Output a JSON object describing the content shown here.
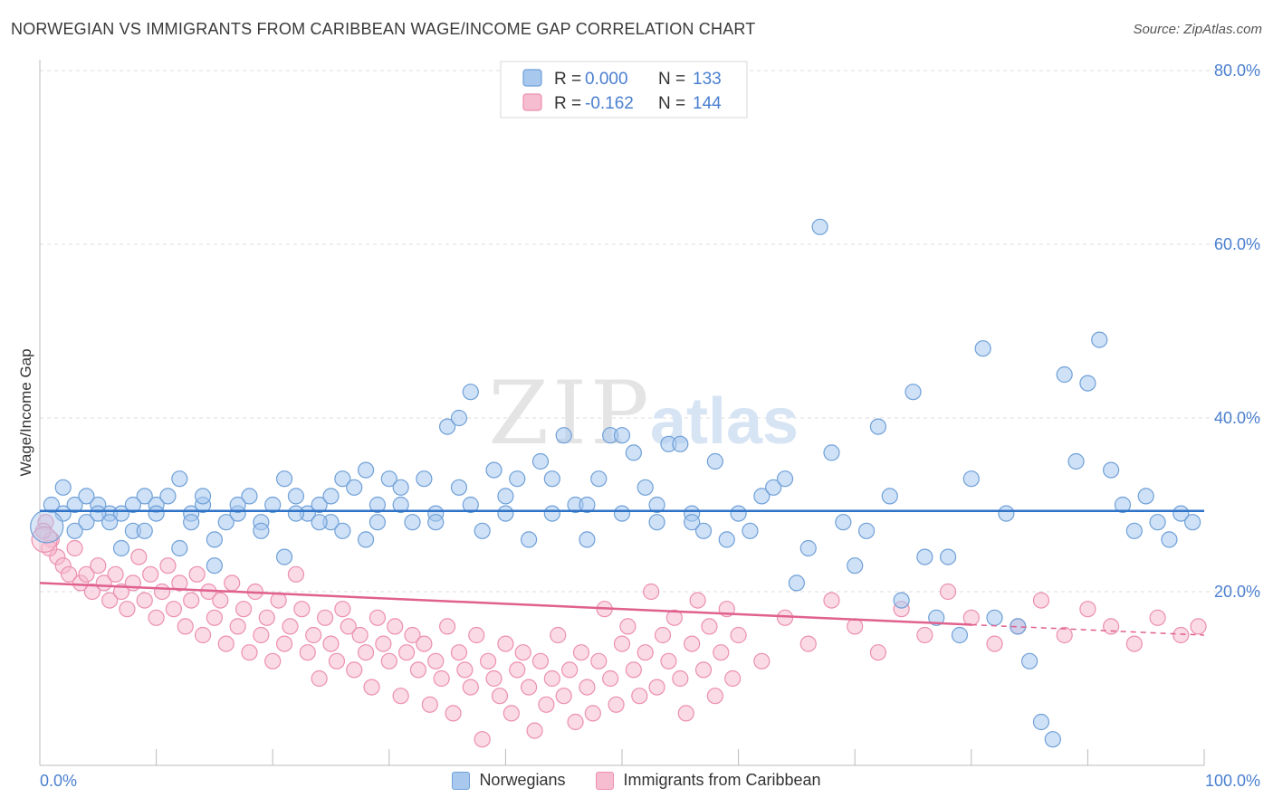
{
  "header": {
    "title": "NORWEGIAN VS IMMIGRANTS FROM CARIBBEAN WAGE/INCOME GAP CORRELATION CHART",
    "source": "Source: ZipAtlas.com"
  },
  "colors": {
    "blue_fill": "#a8c8ee",
    "blue_stroke": "#6fa0d8",
    "blue_line": "#2f73c8",
    "pink_fill": "#f6bcd0",
    "pink_stroke": "#ec8fb0",
    "pink_line": "#e0608e",
    "axis_text": "#4a7fd0",
    "grid": "#dddddd"
  },
  "chart_data": {
    "type": "scatter",
    "title": "NORWEGIAN VS IMMIGRANTS FROM CARIBBEAN WAGE/INCOME GAP CORRELATION CHART",
    "xlabel": "",
    "ylabel": "Wage/Income Gap",
    "xlim": [
      0,
      100
    ],
    "ylim": [
      0,
      80
    ],
    "x_tick_labels": [
      "0.0%",
      "100.0%"
    ],
    "y_ticks": [
      20,
      40,
      60,
      80
    ],
    "y_tick_labels": [
      "20.0%",
      "40.0%",
      "60.0%",
      "80.0%"
    ],
    "watermark": {
      "main": "ZIP",
      "sub": "atlas"
    },
    "legend_top": [
      {
        "r_label": "R =",
        "r": "0.000",
        "n_label": "N =",
        "n": "133"
      },
      {
        "r_label": "R =",
        "r": "-0.162",
        "n_label": "N =",
        "n": "144"
      }
    ],
    "series": [
      {
        "name": "Norwegians",
        "color": "#a8c8ee",
        "trend": {
          "x": [
            0,
            100
          ],
          "y": [
            29.3,
            29.3
          ],
          "dashed_from": null
        },
        "points": [
          [
            2,
            32
          ],
          [
            3,
            30
          ],
          [
            4,
            28
          ],
          [
            5,
            30
          ],
          [
            6,
            29
          ],
          [
            7,
            29
          ],
          [
            7,
            25
          ],
          [
            8,
            27
          ],
          [
            9,
            27
          ],
          [
            9,
            31
          ],
          [
            10,
            30
          ],
          [
            11,
            31
          ],
          [
            12,
            33
          ],
          [
            12,
            25
          ],
          [
            13,
            29
          ],
          [
            14,
            30
          ],
          [
            15,
            26
          ],
          [
            15,
            23
          ],
          [
            16,
            28
          ],
          [
            17,
            29
          ],
          [
            18,
            31
          ],
          [
            19,
            28
          ],
          [
            20,
            30
          ],
          [
            21,
            33
          ],
          [
            21,
            24
          ],
          [
            22,
            31
          ],
          [
            23,
            29
          ],
          [
            24,
            30
          ],
          [
            25,
            28
          ],
          [
            25,
            31
          ],
          [
            26,
            33
          ],
          [
            27,
            32
          ],
          [
            28,
            34
          ],
          [
            28,
            26
          ],
          [
            29,
            28
          ],
          [
            30,
            33
          ],
          [
            31,
            32
          ],
          [
            32,
            28
          ],
          [
            33,
            33
          ],
          [
            34,
            29
          ],
          [
            35,
            39
          ],
          [
            36,
            40
          ],
          [
            36,
            32
          ],
          [
            37,
            43
          ],
          [
            38,
            27
          ],
          [
            39,
            34
          ],
          [
            40,
            31
          ],
          [
            41,
            33
          ],
          [
            42,
            26
          ],
          [
            43,
            35
          ],
          [
            44,
            33
          ],
          [
            45,
            38
          ],
          [
            46,
            30
          ],
          [
            47,
            26
          ],
          [
            48,
            33
          ],
          [
            49,
            38
          ],
          [
            50,
            38
          ],
          [
            51,
            36
          ],
          [
            52,
            32
          ],
          [
            53,
            28
          ],
          [
            54,
            37
          ],
          [
            55,
            37
          ],
          [
            56,
            29
          ],
          [
            57,
            27
          ],
          [
            58,
            35
          ],
          [
            59,
            26
          ],
          [
            60,
            29
          ],
          [
            61,
            27
          ],
          [
            62,
            31
          ],
          [
            63,
            32
          ],
          [
            64,
            33
          ],
          [
            65,
            21
          ],
          [
            66,
            25
          ],
          [
            67,
            62
          ],
          [
            68,
            36
          ],
          [
            69,
            28
          ],
          [
            70,
            23
          ],
          [
            71,
            27
          ],
          [
            72,
            39
          ],
          [
            73,
            31
          ],
          [
            74,
            19
          ],
          [
            75,
            43
          ],
          [
            76,
            24
          ],
          [
            77,
            17
          ],
          [
            78,
            24
          ],
          [
            79,
            15
          ],
          [
            80,
            33
          ],
          [
            81,
            48
          ],
          [
            82,
            17
          ],
          [
            83,
            29
          ],
          [
            84,
            16
          ],
          [
            85,
            12
          ],
          [
            86,
            5
          ],
          [
            87,
            3
          ],
          [
            88,
            45
          ],
          [
            89,
            35
          ],
          [
            90,
            44
          ],
          [
            91,
            49
          ],
          [
            92,
            34
          ],
          [
            93,
            30
          ],
          [
            94,
            27
          ],
          [
            95,
            31
          ],
          [
            96,
            28
          ],
          [
            97,
            26
          ],
          [
            98,
            29
          ],
          [
            99,
            28
          ],
          [
            1,
            30
          ],
          [
            2,
            29
          ],
          [
            3,
            27
          ],
          [
            4,
            31
          ],
          [
            5,
            29
          ],
          [
            6,
            28
          ],
          [
            8,
            30
          ],
          [
            10,
            29
          ],
          [
            13,
            28
          ],
          [
            14,
            31
          ],
          [
            17,
            30
          ],
          [
            19,
            27
          ],
          [
            22,
            29
          ],
          [
            24,
            28
          ],
          [
            26,
            27
          ],
          [
            29,
            30
          ],
          [
            31,
            30
          ],
          [
            34,
            28
          ],
          [
            37,
            30
          ],
          [
            40,
            29
          ],
          [
            44,
            29
          ],
          [
            47,
            30
          ],
          [
            50,
            29
          ],
          [
            53,
            30
          ],
          [
            56,
            28
          ]
        ]
      },
      {
        "name": "Immigrants from Caribbean",
        "color": "#f6bcd0",
        "trend": {
          "x": [
            0,
            80,
            100
          ],
          "y": [
            21.0,
            16.2,
            15.0
          ],
          "dashed_from": 80
        },
        "points": [
          [
            0.5,
            28
          ],
          [
            1,
            26
          ],
          [
            1.5,
            24
          ],
          [
            2,
            23
          ],
          [
            2.5,
            22
          ],
          [
            3,
            25
          ],
          [
            3.5,
            21
          ],
          [
            4,
            22
          ],
          [
            4.5,
            20
          ],
          [
            5,
            23
          ],
          [
            5.5,
            21
          ],
          [
            6,
            19
          ],
          [
            6.5,
            22
          ],
          [
            7,
            20
          ],
          [
            7.5,
            18
          ],
          [
            8,
            21
          ],
          [
            8.5,
            24
          ],
          [
            9,
            19
          ],
          [
            9.5,
            22
          ],
          [
            10,
            17
          ],
          [
            10.5,
            20
          ],
          [
            11,
            23
          ],
          [
            11.5,
            18
          ],
          [
            12,
            21
          ],
          [
            12.5,
            16
          ],
          [
            13,
            19
          ],
          [
            13.5,
            22
          ],
          [
            14,
            15
          ],
          [
            14.5,
            20
          ],
          [
            15,
            17
          ],
          [
            15.5,
            19
          ],
          [
            16,
            14
          ],
          [
            16.5,
            21
          ],
          [
            17,
            16
          ],
          [
            17.5,
            18
          ],
          [
            18,
            13
          ],
          [
            18.5,
            20
          ],
          [
            19,
            15
          ],
          [
            19.5,
            17
          ],
          [
            20,
            12
          ],
          [
            20.5,
            19
          ],
          [
            21,
            14
          ],
          [
            21.5,
            16
          ],
          [
            22,
            22
          ],
          [
            22.5,
            18
          ],
          [
            23,
            13
          ],
          [
            23.5,
            15
          ],
          [
            24,
            10
          ],
          [
            24.5,
            17
          ],
          [
            25,
            14
          ],
          [
            25.5,
            12
          ],
          [
            26,
            18
          ],
          [
            26.5,
            16
          ],
          [
            27,
            11
          ],
          [
            27.5,
            15
          ],
          [
            28,
            13
          ],
          [
            28.5,
            9
          ],
          [
            29,
            17
          ],
          [
            29.5,
            14
          ],
          [
            30,
            12
          ],
          [
            30.5,
            16
          ],
          [
            31,
            8
          ],
          [
            31.5,
            13
          ],
          [
            32,
            15
          ],
          [
            32.5,
            11
          ],
          [
            33,
            14
          ],
          [
            33.5,
            7
          ],
          [
            34,
            12
          ],
          [
            34.5,
            10
          ],
          [
            35,
            16
          ],
          [
            35.5,
            6
          ],
          [
            36,
            13
          ],
          [
            36.5,
            11
          ],
          [
            37,
            9
          ],
          [
            37.5,
            15
          ],
          [
            38,
            3
          ],
          [
            38.5,
            12
          ],
          [
            39,
            10
          ],
          [
            39.5,
            8
          ],
          [
            40,
            14
          ],
          [
            40.5,
            6
          ],
          [
            41,
            11
          ],
          [
            41.5,
            13
          ],
          [
            42,
            9
          ],
          [
            42.5,
            4
          ],
          [
            43,
            12
          ],
          [
            43.5,
            7
          ],
          [
            44,
            10
          ],
          [
            44.5,
            15
          ],
          [
            45,
            8
          ],
          [
            45.5,
            11
          ],
          [
            46,
            5
          ],
          [
            46.5,
            13
          ],
          [
            47,
            9
          ],
          [
            47.5,
            6
          ],
          [
            48,
            12
          ],
          [
            48.5,
            18
          ],
          [
            49,
            10
          ],
          [
            49.5,
            7
          ],
          [
            50,
            14
          ],
          [
            50.5,
            16
          ],
          [
            51,
            11
          ],
          [
            51.5,
            8
          ],
          [
            52,
            13
          ],
          [
            52.5,
            20
          ],
          [
            53,
            9
          ],
          [
            53.5,
            15
          ],
          [
            54,
            12
          ],
          [
            54.5,
            17
          ],
          [
            55,
            10
          ],
          [
            55.5,
            6
          ],
          [
            56,
            14
          ],
          [
            56.5,
            19
          ],
          [
            57,
            11
          ],
          [
            57.5,
            16
          ],
          [
            58,
            8
          ],
          [
            58.5,
            13
          ],
          [
            59,
            18
          ],
          [
            59.5,
            10
          ],
          [
            60,
            15
          ],
          [
            62,
            12
          ],
          [
            64,
            17
          ],
          [
            66,
            14
          ],
          [
            68,
            19
          ],
          [
            70,
            16
          ],
          [
            72,
            13
          ],
          [
            74,
            18
          ],
          [
            76,
            15
          ],
          [
            78,
            20
          ],
          [
            80,
            17
          ],
          [
            82,
            14
          ],
          [
            84,
            16
          ],
          [
            86,
            19
          ],
          [
            88,
            15
          ],
          [
            90,
            18
          ],
          [
            92,
            16
          ],
          [
            94,
            14
          ],
          [
            96,
            17
          ],
          [
            98,
            15
          ],
          [
            99.5,
            16
          ],
          [
            0.3,
            27
          ],
          [
            0.8,
            25
          ]
        ]
      }
    ]
  },
  "legend_bottom": [
    {
      "label": "Norwegians"
    },
    {
      "label": "Immigrants from Caribbean"
    }
  ]
}
